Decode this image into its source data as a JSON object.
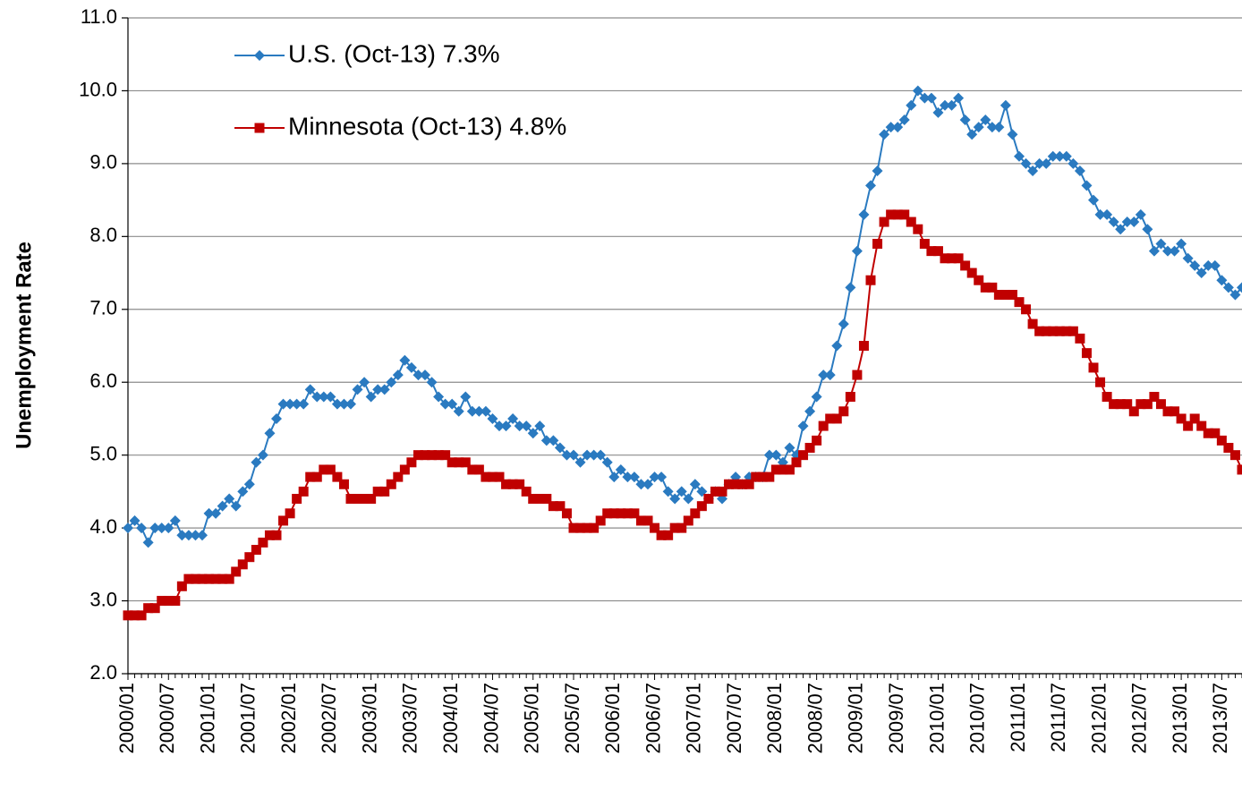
{
  "chart_data": {
    "type": "line",
    "y_label": "Unemployment Rate",
    "categories": [
      "2000/01",
      null,
      null,
      null,
      null,
      null,
      "2000/07",
      null,
      null,
      null,
      null,
      null,
      "2001/01",
      null,
      null,
      null,
      null,
      null,
      "2001/07",
      null,
      null,
      null,
      null,
      null,
      "2002/01",
      null,
      null,
      null,
      null,
      null,
      "2002/07",
      null,
      null,
      null,
      null,
      null,
      "2003/01",
      null,
      null,
      null,
      null,
      null,
      "2003/07",
      null,
      null,
      null,
      null,
      null,
      "2004/01",
      null,
      null,
      null,
      null,
      null,
      "2004/07",
      null,
      null,
      null,
      null,
      null,
      "2005/01",
      null,
      null,
      null,
      null,
      null,
      "2005/07",
      null,
      null,
      null,
      null,
      null,
      "2006/01",
      null,
      null,
      null,
      null,
      null,
      "2006/07",
      null,
      null,
      null,
      null,
      null,
      "2007/01",
      null,
      null,
      null,
      null,
      null,
      "2007/07",
      null,
      null,
      null,
      null,
      null,
      "2008/01",
      null,
      null,
      null,
      null,
      null,
      "2008/07",
      null,
      null,
      null,
      null,
      null,
      "2009/01",
      null,
      null,
      null,
      null,
      null,
      "2009/07",
      null,
      null,
      null,
      null,
      null,
      "2010/01",
      null,
      null,
      null,
      null,
      null,
      "2010/07",
      null,
      null,
      null,
      null,
      null,
      "2011/01",
      null,
      null,
      null,
      null,
      null,
      "2011/07",
      null,
      null,
      null,
      null,
      null,
      "2012/01",
      null,
      null,
      null,
      null,
      null,
      "2012/07",
      null,
      null,
      null,
      null,
      null,
      "2013/01",
      null,
      null,
      null,
      null,
      null,
      "2013/07",
      null,
      null,
      null
    ],
    "series": [
      {
        "name": "U.S. (Oct-13) 7.3%",
        "color": "#2a7ac0",
        "marker": "diamond",
        "values": [
          4.0,
          4.1,
          4.0,
          3.8,
          4.0,
          4.0,
          4.0,
          4.1,
          3.9,
          3.9,
          3.9,
          3.9,
          4.2,
          4.2,
          4.3,
          4.4,
          4.3,
          4.5,
          4.6,
          4.9,
          5.0,
          5.3,
          5.5,
          5.7,
          5.7,
          5.7,
          5.7,
          5.9,
          5.8,
          5.8,
          5.8,
          5.7,
          5.7,
          5.7,
          5.9,
          6.0,
          5.8,
          5.9,
          5.9,
          6.0,
          6.1,
          6.3,
          6.2,
          6.1,
          6.1,
          6.0,
          5.8,
          5.7,
          5.7,
          5.6,
          5.8,
          5.6,
          5.6,
          5.6,
          5.5,
          5.4,
          5.4,
          5.5,
          5.4,
          5.4,
          5.3,
          5.4,
          5.2,
          5.2,
          5.1,
          5.0,
          5.0,
          4.9,
          5.0,
          5.0,
          5.0,
          4.9,
          4.7,
          4.8,
          4.7,
          4.7,
          4.6,
          4.6,
          4.7,
          4.7,
          4.5,
          4.4,
          4.5,
          4.4,
          4.6,
          4.5,
          4.4,
          4.5,
          4.4,
          4.6,
          4.7,
          4.6,
          4.7,
          4.7,
          4.7,
          5.0,
          5.0,
          4.9,
          5.1,
          5.0,
          5.4,
          5.6,
          5.8,
          6.1,
          6.1,
          6.5,
          6.8,
          7.3,
          7.8,
          8.3,
          8.7,
          8.9,
          9.4,
          9.5,
          9.5,
          9.6,
          9.8,
          10.0,
          9.9,
          9.9,
          9.7,
          9.8,
          9.8,
          9.9,
          9.6,
          9.4,
          9.5,
          9.6,
          9.5,
          9.5,
          9.8,
          9.4,
          9.1,
          9.0,
          8.9,
          9.0,
          9.0,
          9.1,
          9.1,
          9.1,
          9.0,
          8.9,
          8.7,
          8.5,
          8.3,
          8.3,
          8.2,
          8.1,
          8.2,
          8.2,
          8.3,
          8.1,
          7.8,
          7.9,
          7.8,
          7.8,
          7.9,
          7.7,
          7.6,
          7.5,
          7.6,
          7.6,
          7.4,
          7.3,
          7.2,
          7.3
        ]
      },
      {
        "name": "Minnesota (Oct-13) 4.8%",
        "color": "#c00000",
        "marker": "square",
        "values": [
          2.8,
          2.8,
          2.8,
          2.9,
          2.9,
          3.0,
          3.0,
          3.0,
          3.2,
          3.3,
          3.3,
          3.3,
          3.3,
          3.3,
          3.3,
          3.3,
          3.4,
          3.5,
          3.6,
          3.7,
          3.8,
          3.9,
          3.9,
          4.1,
          4.2,
          4.4,
          4.5,
          4.7,
          4.7,
          4.8,
          4.8,
          4.7,
          4.6,
          4.4,
          4.4,
          4.4,
          4.4,
          4.5,
          4.5,
          4.6,
          4.7,
          4.8,
          4.9,
          5.0,
          5.0,
          5.0,
          5.0,
          5.0,
          4.9,
          4.9,
          4.9,
          4.8,
          4.8,
          4.7,
          4.7,
          4.7,
          4.6,
          4.6,
          4.6,
          4.5,
          4.4,
          4.4,
          4.4,
          4.3,
          4.3,
          4.2,
          4.0,
          4.0,
          4.0,
          4.0,
          4.1,
          4.2,
          4.2,
          4.2,
          4.2,
          4.2,
          4.1,
          4.1,
          4.0,
          3.9,
          3.9,
          4.0,
          4.0,
          4.1,
          4.2,
          4.3,
          4.4,
          4.5,
          4.5,
          4.6,
          4.6,
          4.6,
          4.6,
          4.7,
          4.7,
          4.7,
          4.8,
          4.8,
          4.8,
          4.9,
          5.0,
          5.1,
          5.2,
          5.4,
          5.5,
          5.5,
          5.6,
          5.8,
          6.1,
          6.5,
          7.4,
          7.9,
          8.2,
          8.3,
          8.3,
          8.3,
          8.2,
          8.1,
          7.9,
          7.8,
          7.8,
          7.7,
          7.7,
          7.7,
          7.6,
          7.5,
          7.4,
          7.3,
          7.3,
          7.2,
          7.2,
          7.2,
          7.1,
          7.0,
          6.8,
          6.7,
          6.7,
          6.7,
          6.7,
          6.7,
          6.7,
          6.6,
          6.4,
          6.2,
          6.0,
          5.8,
          5.7,
          5.7,
          5.7,
          5.6,
          5.7,
          5.7,
          5.8,
          5.7,
          5.6,
          5.6,
          5.5,
          5.4,
          5.5,
          5.4,
          5.3,
          5.3,
          5.2,
          5.1,
          5.0,
          4.8
        ]
      }
    ],
    "ylim": [
      2,
      11
    ],
    "yticks": [
      {
        "value": 2,
        "label": "2.0"
      },
      {
        "value": 3,
        "label": "3.0"
      },
      {
        "value": 4,
        "label": "4.0"
      },
      {
        "value": 5,
        "label": "5.0"
      },
      {
        "value": 6,
        "label": "6.0"
      },
      {
        "value": 7,
        "label": "7.0"
      },
      {
        "value": 8,
        "label": "8.0"
      },
      {
        "value": 9,
        "label": "9.0"
      },
      {
        "value": 10,
        "label": "10.0"
      },
      {
        "value": 11,
        "label": "11.0"
      }
    ],
    "grid": true,
    "legend": "upper left"
  }
}
